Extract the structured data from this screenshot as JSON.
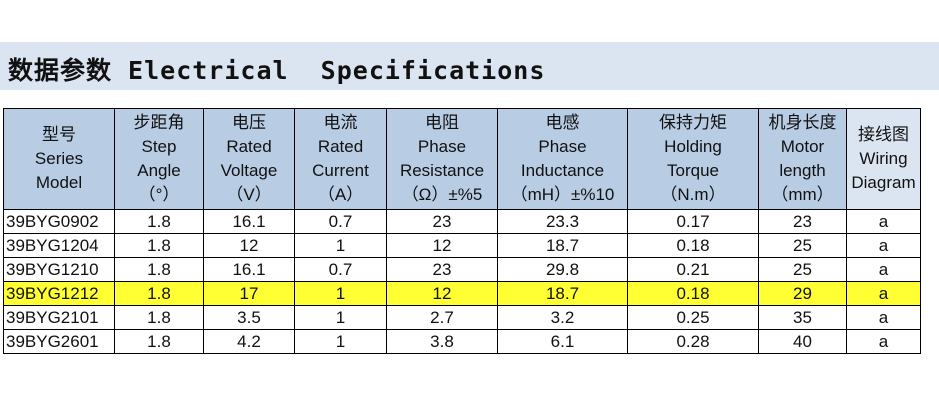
{
  "title": "数据参数 Electrical  Specifications",
  "table": {
    "headers": [
      [
        "型号",
        "Series",
        "Model"
      ],
      [
        "步距角",
        "Step",
        "Angle",
        "（°）"
      ],
      [
        "电压",
        "Rated",
        "Voltage",
        "（V）"
      ],
      [
        "电流",
        "Rated",
        "Current",
        "（A）"
      ],
      [
        "电阻",
        "Phase",
        "Resistance",
        "（Ω）±%5"
      ],
      [
        "电感",
        "Phase",
        "Inductance",
        "（mH）±%10"
      ],
      [
        "保持力矩",
        "Holding",
        "Torque",
        "（N.m）"
      ],
      [
        "机身长度",
        "Motor",
        "length",
        "（mm）"
      ],
      [
        "接线图",
        "Wiring",
        "Diagram"
      ]
    ],
    "rows": [
      [
        "39BYG0902",
        "1.8",
        "16.1",
        "0.7",
        "23",
        "23.3",
        "0.17",
        "23",
        "a"
      ],
      [
        "39BYG1204",
        "1.8",
        "12",
        "1",
        "12",
        "18.7",
        "0.18",
        "25",
        "a"
      ],
      [
        "39BYG1210",
        "1.8",
        "16.1",
        "0.7",
        "23",
        "29.8",
        "0.21",
        "25",
        "a"
      ],
      [
        "39BYG1212",
        "1.8",
        "17",
        "1",
        "12",
        "18.7",
        "0.18",
        "29",
        "a"
      ],
      [
        "39BYG2101",
        "1.8",
        "3.5",
        "1",
        "2.7",
        "3.2",
        "0.25",
        "35",
        "a"
      ],
      [
        "39BYG2601",
        "1.8",
        "4.2",
        "1",
        "3.8",
        "6.1",
        "0.28",
        "40",
        "a"
      ]
    ],
    "highlight_row": 3
  }
}
